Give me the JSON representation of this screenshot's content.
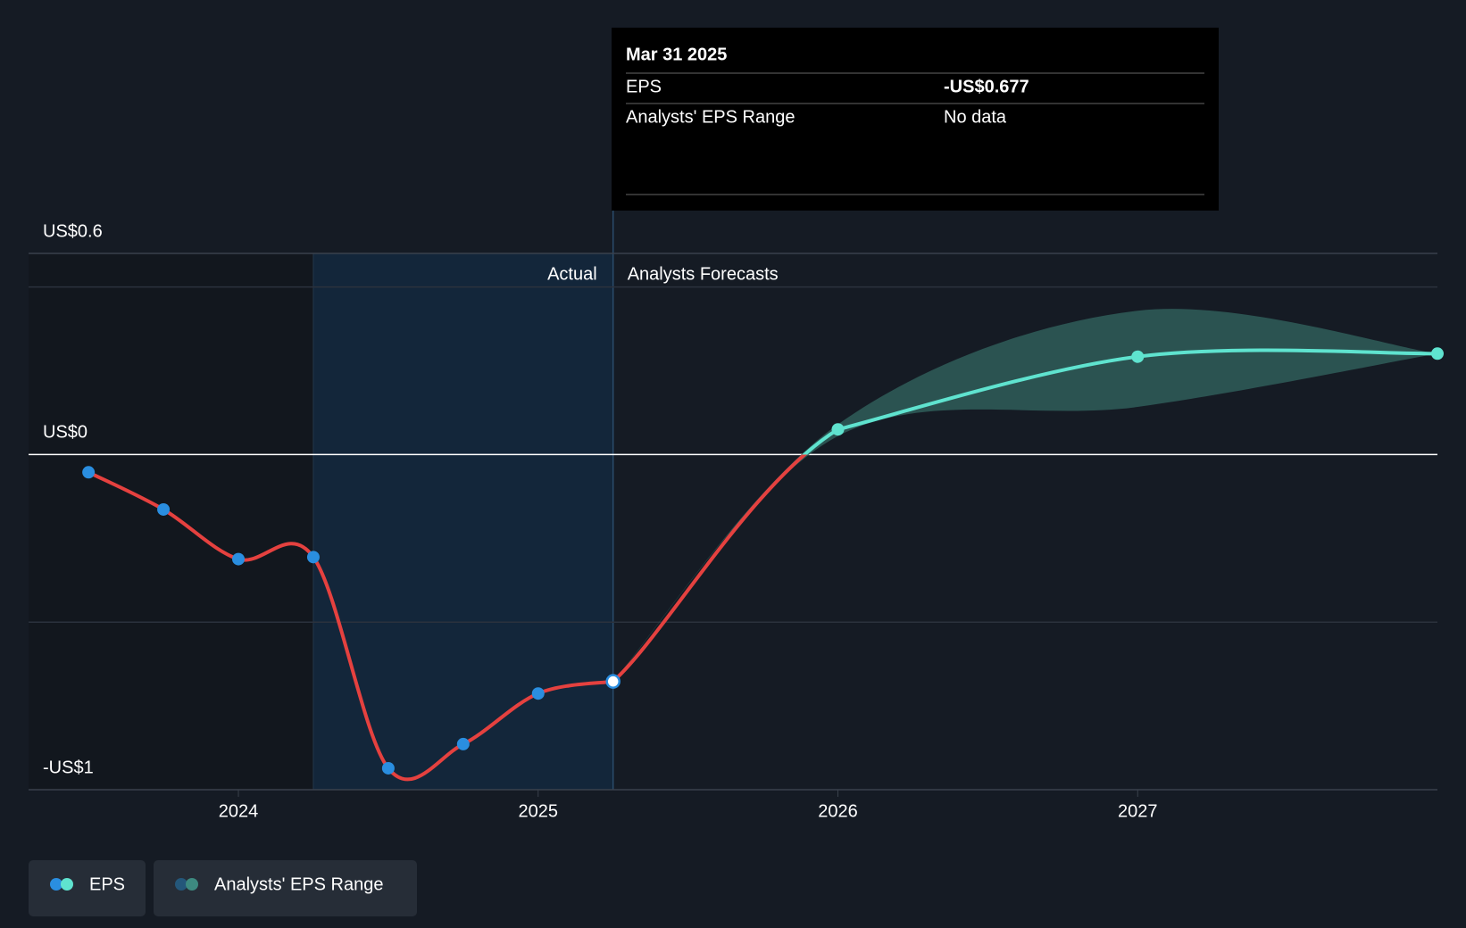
{
  "chart_data": {
    "type": "line",
    "series": [
      {
        "name": "EPS",
        "color": "#e5413f",
        "x": [
          2023.5,
          2023.75,
          2024.0,
          2024.25,
          2024.5,
          2024.75,
          2025.0,
          2025.25
        ],
        "values": [
          -0.053,
          -0.164,
          -0.312,
          -0.306,
          -0.936,
          -0.864,
          -0.713,
          -0.677
        ]
      },
      {
        "name": "EPS",
        "color": "#5fe3cf",
        "x": [
          2026.0,
          2027.0,
          2028.0
        ],
        "values": [
          0.075,
          0.292,
          0.301
        ]
      }
    ],
    "range": {
      "name": "Analysts' EPS Range",
      "color": "#2e5a57",
      "x": [
        2026.0,
        2027.0,
        2028.0
      ],
      "low": [
        0.055,
        0.142,
        0.301
      ],
      "high": [
        0.09,
        0.429,
        0.301
      ]
    },
    "legend": [
      "EPS",
      "Analysts' EPS Range"
    ],
    "xlim": [
      2023.3,
      2028.0
    ],
    "xticks": [
      2024,
      2025,
      2026,
      2027
    ],
    "ylim": [
      -1,
      0.6
    ],
    "yticks": [
      {
        "value": 0.6,
        "label": "US$0.6"
      },
      {
        "value": 0,
        "label": "US$0"
      },
      {
        "value": -1,
        "label": "-US$1"
      }
    ],
    "grid_values": [
      -0.5,
      0.5
    ],
    "region_labels": [
      "Actual",
      "Analysts Forecasts"
    ],
    "tooltip": {
      "date": "Mar 31 2025",
      "rows": [
        [
          "EPS",
          "-US$0.677"
        ],
        [
          "Analysts' EPS Range",
          "No data"
        ]
      ]
    }
  }
}
